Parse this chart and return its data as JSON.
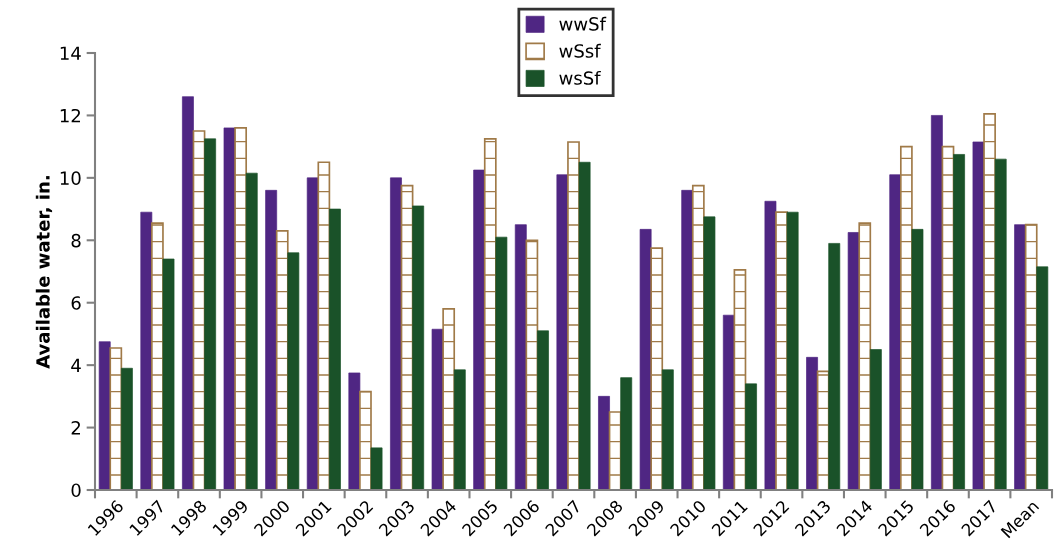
{
  "chart_data": {
    "type": "bar",
    "ylabel": "Available water, in.",
    "categories": [
      "1996",
      "1997",
      "1998",
      "1999",
      "2000",
      "2001",
      "2002",
      "2003",
      "2004",
      "2005",
      "2006",
      "2007",
      "2008",
      "2009",
      "2010",
      "2011",
      "2012",
      "2013",
      "2014",
      "2015",
      "2016",
      "2017",
      "Mean"
    ],
    "series": [
      {
        "name": "wwSf",
        "color": "#4f2683",
        "values": [
          4.75,
          8.9,
          12.6,
          11.6,
          9.6,
          10.0,
          3.75,
          10.0,
          5.15,
          10.25,
          8.5,
          10.1,
          3.0,
          8.35,
          9.6,
          5.6,
          9.25,
          4.25,
          8.25,
          10.1,
          12.0,
          11.15,
          8.5
        ]
      },
      {
        "name": "wSsf",
        "color": "#a07a48",
        "values": [
          4.55,
          8.55,
          11.5,
          11.6,
          8.3,
          10.5,
          3.15,
          9.75,
          5.8,
          11.25,
          8.0,
          11.15,
          2.5,
          7.75,
          9.75,
          7.05,
          8.9,
          3.8,
          8.55,
          11.0,
          11.0,
          12.05,
          8.5
        ]
      },
      {
        "name": "wsSf",
        "color": "#1a5229",
        "values": [
          3.9,
          7.4,
          11.25,
          10.15,
          7.6,
          9.0,
          1.35,
          9.1,
          3.85,
          8.1,
          5.1,
          10.5,
          3.6,
          3.85,
          8.75,
          3.4,
          8.9,
          7.9,
          4.5,
          8.35,
          10.75,
          10.6,
          7.15
        ]
      }
    ],
    "ylim": [
      0,
      14
    ],
    "yticks": [
      0,
      2,
      4,
      6,
      8,
      10,
      12,
      14
    ],
    "grid": false,
    "legend": "top"
  }
}
